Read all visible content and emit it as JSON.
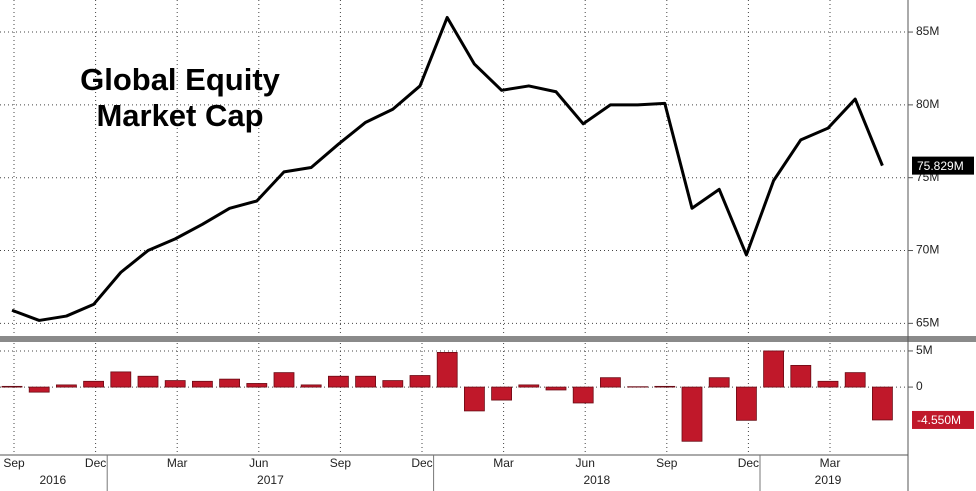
{
  "chart_data": [
    {
      "type": "line",
      "title": "Global Equity Market Cap",
      "categories": [
        "Sep",
        null,
        null,
        "Dec",
        null,
        null,
        "Mar",
        null,
        null,
        "Jun",
        null,
        null,
        "Sep",
        null,
        null,
        "Dec",
        null,
        null,
        "Mar",
        null,
        null,
        "Jun",
        null,
        null,
        "Sep",
        null,
        null,
        "Dec",
        null,
        null,
        "Mar",
        null,
        null
      ],
      "years": [
        "2016",
        "2017",
        "2018",
        "2019"
      ],
      "series": [
        {
          "color": "#000000",
          "values": [
            65.9,
            65.2,
            65.5,
            66.3,
            68.5,
            70.0,
            70.8,
            71.8,
            72.9,
            73.4,
            75.4,
            75.7,
            77.3,
            78.8,
            79.7,
            81.3,
            86.0,
            82.8,
            81.0,
            81.3,
            80.9,
            78.7,
            80.0,
            80.0,
            80.1,
            72.9,
            74.2,
            69.7,
            74.8,
            77.6,
            78.4,
            80.4,
            75.829
          ],
          "value_labels": [
            null,
            null,
            null,
            null,
            null,
            null,
            null,
            null,
            null,
            null,
            null,
            null,
            null,
            null,
            null,
            null,
            null,
            null,
            null,
            null,
            null,
            null,
            null,
            null,
            null,
            null,
            null,
            null,
            null,
            null,
            null,
            null,
            "75.829M"
          ]
        }
      ],
      "ylim": [
        64.2,
        87.2
      ],
      "yticks": [
        {
          "value": 65,
          "label": "65M"
        },
        {
          "value": 70,
          "label": "70M"
        },
        {
          "value": 75,
          "label": "75M"
        },
        {
          "value": 80,
          "label": "80M"
        },
        {
          "value": 85,
          "label": "85M"
        }
      ],
      "grid": true
    },
    {
      "type": "bar",
      "series": [
        {
          "color": "#c0182a",
          "values": [
            0.1,
            -0.7,
            0.3,
            0.8,
            2.1,
            1.5,
            0.9,
            0.8,
            1.1,
            0.5,
            2.0,
            0.3,
            1.5,
            1.5,
            0.9,
            1.6,
            4.8,
            -3.3,
            -1.8,
            0.3,
            -0.4,
            -2.2,
            1.3,
            0.05,
            0.1,
            -7.5,
            1.3,
            -4.6,
            5.0,
            3.0,
            0.8,
            2.0,
            -4.55
          ],
          "value_labels": [
            null,
            null,
            null,
            null,
            null,
            null,
            null,
            null,
            null,
            null,
            null,
            null,
            null,
            null,
            null,
            null,
            null,
            null,
            null,
            null,
            null,
            null,
            null,
            null,
            null,
            null,
            null,
            null,
            null,
            null,
            null,
            null,
            "-4.550M"
          ]
        }
      ],
      "ylim": [
        -9.4,
        6.1
      ],
      "yticks": [
        0,
        {
          "value": 5,
          "label": "5M"
        }
      ],
      "grid": true
    }
  ]
}
